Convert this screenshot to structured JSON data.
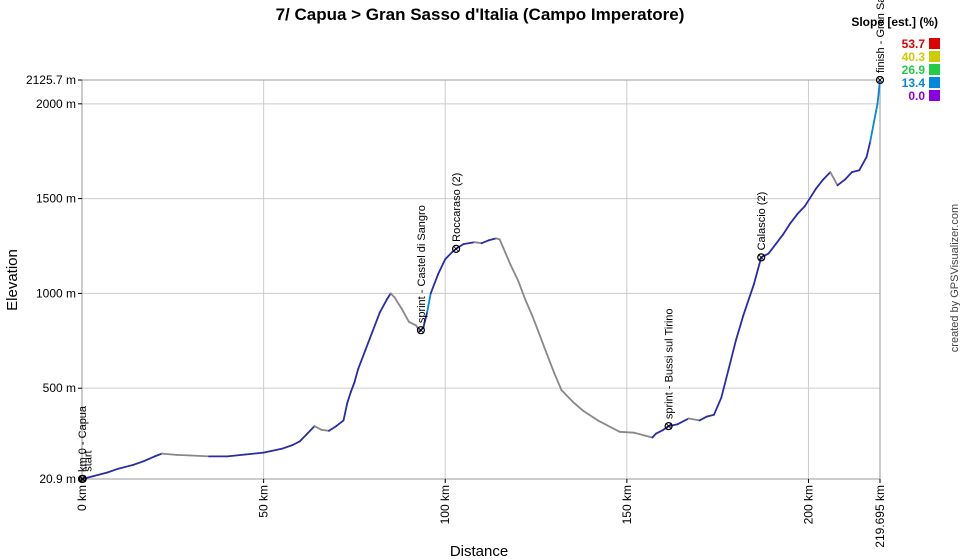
{
  "chart_data": {
    "type": "area",
    "title": "7/ Capua > Gran Sasso d'Italia (Campo Imperatore)",
    "xlabel": "Distance",
    "ylabel": "Elevation",
    "xlim": [
      0,
      219.695
    ],
    "ylim": [
      20.9,
      2125.7
    ],
    "x_ticks": [
      {
        "value": 0,
        "label": "0 km"
      },
      {
        "value": 50,
        "label": "50 km"
      },
      {
        "value": 100,
        "label": "100 km"
      },
      {
        "value": 150,
        "label": "150 km"
      },
      {
        "value": 200,
        "label": "200 km"
      },
      {
        "value": 219.695,
        "label": "219.695 km"
      }
    ],
    "y_ticks": [
      {
        "value": 20.9,
        "label": "20.9 m"
      },
      {
        "value": 500,
        "label": "500 m"
      },
      {
        "value": 1000,
        "label": "1000 m"
      },
      {
        "value": 1500,
        "label": "1500 m"
      },
      {
        "value": 2000,
        "label": "2000 m"
      },
      {
        "value": 2125.7,
        "label": "2125.7 m"
      }
    ],
    "grid": true,
    "profile": [
      [
        0,
        21
      ],
      [
        3,
        35
      ],
      [
        7,
        55
      ],
      [
        10,
        75
      ],
      [
        14,
        95
      ],
      [
        17,
        115
      ],
      [
        20,
        140
      ],
      [
        22,
        155
      ],
      [
        26,
        148
      ],
      [
        30,
        145
      ],
      [
        35,
        140
      ],
      [
        40,
        140
      ],
      [
        45,
        150
      ],
      [
        50,
        160
      ],
      [
        55,
        180
      ],
      [
        58,
        200
      ],
      [
        60,
        220
      ],
      [
        62,
        260
      ],
      [
        64,
        300
      ],
      [
        66,
        280
      ],
      [
        68,
        275
      ],
      [
        70,
        300
      ],
      [
        72,
        330
      ],
      [
        73,
        420
      ],
      [
        74,
        480
      ],
      [
        75,
        530
      ],
      [
        76,
        600
      ],
      [
        78,
        700
      ],
      [
        80,
        800
      ],
      [
        82,
        900
      ],
      [
        84,
        970
      ],
      [
        85,
        1000
      ],
      [
        86,
        980
      ],
      [
        88,
        920
      ],
      [
        90,
        850
      ],
      [
        92,
        830
      ],
      [
        93,
        800
      ],
      [
        94,
        820
      ],
      [
        95,
        900
      ],
      [
        96,
        1000
      ],
      [
        98,
        1100
      ],
      [
        100,
        1180
      ],
      [
        102,
        1220
      ],
      [
        103,
        1235
      ],
      [
        105,
        1260
      ],
      [
        108,
        1270
      ],
      [
        110,
        1265
      ],
      [
        112,
        1280
      ],
      [
        114,
        1290
      ],
      [
        115,
        1285
      ],
      [
        116,
        1240
      ],
      [
        118,
        1150
      ],
      [
        120,
        1070
      ],
      [
        122,
        970
      ],
      [
        124,
        880
      ],
      [
        126,
        780
      ],
      [
        128,
        680
      ],
      [
        130,
        580
      ],
      [
        132,
        490
      ],
      [
        135,
        430
      ],
      [
        138,
        380
      ],
      [
        142,
        330
      ],
      [
        146,
        290
      ],
      [
        148,
        270
      ],
      [
        152,
        265
      ],
      [
        155,
        250
      ],
      [
        157,
        240
      ],
      [
        158,
        260
      ],
      [
        160,
        280
      ],
      [
        161.5,
        300
      ],
      [
        164,
        310
      ],
      [
        167,
        340
      ],
      [
        170,
        330
      ],
      [
        172,
        350
      ],
      [
        174,
        360
      ],
      [
        176,
        450
      ],
      [
        178,
        600
      ],
      [
        180,
        750
      ],
      [
        182,
        880
      ],
      [
        185,
        1050
      ],
      [
        187,
        1190
      ],
      [
        189,
        1210
      ],
      [
        191,
        1260
      ],
      [
        193,
        1310
      ],
      [
        195,
        1370
      ],
      [
        197,
        1420
      ],
      [
        199,
        1460
      ],
      [
        201,
        1520
      ],
      [
        202,
        1550
      ],
      [
        204,
        1600
      ],
      [
        206,
        1640
      ],
      [
        208,
        1570
      ],
      [
        210,
        1600
      ],
      [
        212,
        1640
      ],
      [
        214,
        1650
      ],
      [
        216,
        1720
      ],
      [
        217,
        1800
      ],
      [
        218,
        1900
      ],
      [
        219,
        2000
      ],
      [
        219.695,
        2125.7
      ]
    ],
    "waypoints": [
      {
        "x": 0,
        "label": "km 0 - Capua"
      },
      {
        "x": 0.2,
        "label": "start"
      },
      {
        "x": 93.3,
        "label": "sprint - Castel di Sangro"
      },
      {
        "x": 103,
        "label": "Roccaraso (2)"
      },
      {
        "x": 161.5,
        "label": "sprint - Bussi sul Tirino"
      },
      {
        "x": 187,
        "label": "Calascio (2)"
      },
      {
        "x": 219.695,
        "label": "finish - Gran Sasso"
      }
    ],
    "legend": {
      "title": "Slope [est.] (%)",
      "placement": "top-right",
      "entries": [
        {
          "label": "53.7",
          "color": "#dd0000"
        },
        {
          "label": "40.3",
          "color": "#cccc00"
        },
        {
          "label": "26.9",
          "color": "#22cc44"
        },
        {
          "label": "13.4",
          "color": "#0088dd"
        },
        {
          "label": "0.0",
          "color": "#8800dd"
        }
      ]
    },
    "colors": {
      "climb": "#2a2aaa",
      "descent": "#888888",
      "steep_climb": "#0088dd",
      "grid": "#cccccc"
    }
  },
  "watermark": "created by GPSVisualizer.com"
}
